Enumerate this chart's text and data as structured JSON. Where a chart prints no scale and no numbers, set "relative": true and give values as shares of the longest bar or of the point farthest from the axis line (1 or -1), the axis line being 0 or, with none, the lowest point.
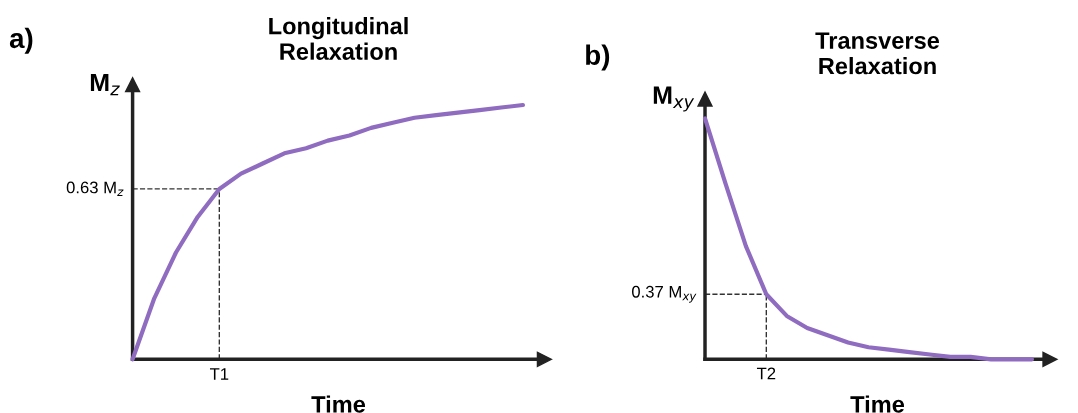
{
  "chart_data": [
    {
      "type": "line",
      "title": "Longitudinal\nRelaxation",
      "xlabel": "Time",
      "ylabel": "M$_{z}$",
      "relative": true,
      "grid": false,
      "legend": false,
      "marker": "none",
      "line_style": "solid",
      "annotations": [
        "a)",
        "T1"
      ],
      "categories": [
        null,
        null,
        null,
        null,
        null,
        null,
        null,
        null,
        null,
        null,
        null,
        null,
        null,
        null,
        null,
        null,
        null,
        null,
        null
      ],
      "series": [
        {
          "color": "#8f6cc0",
          "values": [
            0,
            0.24,
            0.42,
            0.56,
            0.67,
            0.73,
            0.77,
            0.81,
            0.83,
            0.86,
            0.88,
            0.91,
            0.93,
            0.95,
            0.96,
            0.97,
            0.98,
            0.99,
            1
          ]
        }
      ],
      "ref_lines": [
        {
          "axis": "y",
          "value": 0.67,
          "label": "0.63 M$_{z}$",
          "line_style": "dashed",
          "color": "#333333"
        }
      ]
    },
    {
      "type": "line",
      "title": "Transverse\nRelaxation",
      "xlabel": "Time",
      "ylabel": "M$_{xy}$",
      "relative": true,
      "grid": false,
      "legend": false,
      "marker": "none",
      "line_style": "solid",
      "annotations": [
        "b)",
        "T2"
      ],
      "categories": [
        null,
        null,
        null,
        null,
        null,
        null,
        null,
        null,
        null,
        null,
        null,
        null,
        null,
        null,
        null,
        null,
        null
      ],
      "series": [
        {
          "color": "#8f6cc0",
          "values": [
            1,
            0.73,
            0.47,
            0.27,
            0.18,
            0.13,
            0.1,
            0.07,
            0.05,
            0.04,
            0.03,
            0.02,
            0.01,
            0.01,
            0,
            0,
            0
          ]
        }
      ],
      "ref_lines": [
        {
          "axis": "y",
          "value": 0.27,
          "label": "0.37 M$_{xy}$",
          "line_style": "dashed",
          "color": "#333333"
        }
      ]
    }
  ]
}
